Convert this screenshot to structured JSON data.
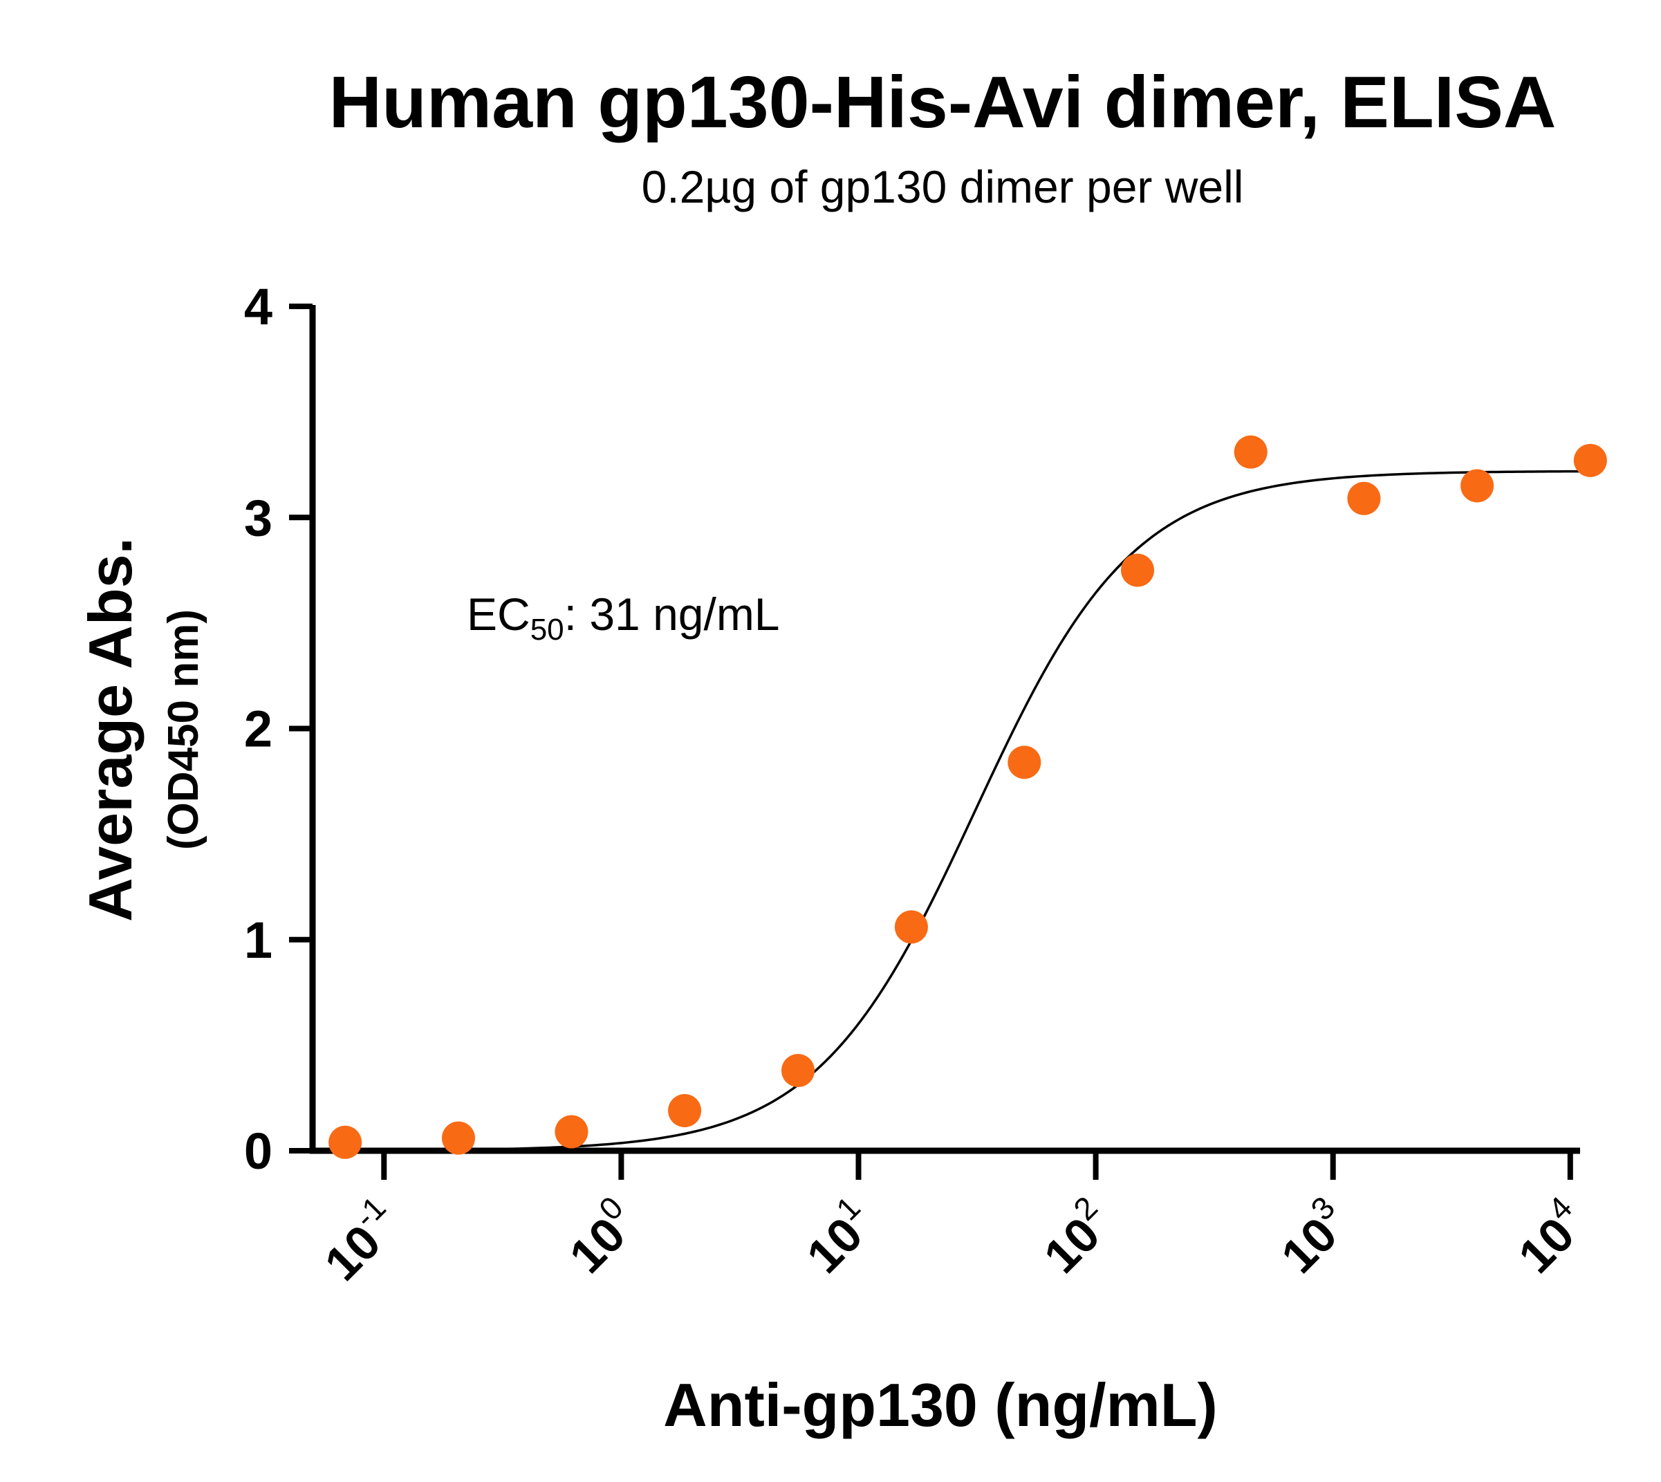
{
  "chart_data": {
    "type": "scatter",
    "title": "Human gp130-His-Avi dimer, ELISA",
    "subtitle": "0.2µg of gp130 dimer per well",
    "xlabel": "Anti-gp130  (ng/mL)",
    "ylabel": "Average Abs.",
    "ylabel_sub": "(OD450 nm)",
    "x_scale": "log",
    "xlim": [
      0.05,
      11000
    ],
    "ylim": [
      0,
      4
    ],
    "x_ticks": [
      {
        "base": "10",
        "exp": "-1",
        "value": 0.1
      },
      {
        "base": "10",
        "exp": "0",
        "value": 1
      },
      {
        "base": "10",
        "exp": "1",
        "value": 10
      },
      {
        "base": "10",
        "exp": "2",
        "value": 100
      },
      {
        "base": "10",
        "exp": "3",
        "value": 1000
      },
      {
        "base": "10",
        "exp": "4",
        "value": 10000
      }
    ],
    "y_ticks": [
      {
        "label": "0",
        "value": 0
      },
      {
        "label": "1",
        "value": 1
      },
      {
        "label": "2",
        "value": 2
      },
      {
        "label": "3",
        "value": 3
      },
      {
        "label": "4",
        "value": 4
      }
    ],
    "grid": false,
    "annotation": {
      "prefix": "EC",
      "sub": "50",
      "suffix": ": 31 ng/mL"
    },
    "series": [
      {
        "marker_color": "#F96A15",
        "points": [
          {
            "x": 0.0686,
            "y": 0.04
          },
          {
            "x": 0.206,
            "y": 0.06
          },
          {
            "x": 0.617,
            "y": 0.09
          },
          {
            "x": 1.85,
            "y": 0.19
          },
          {
            "x": 5.56,
            "y": 0.38
          },
          {
            "x": 16.7,
            "y": 1.06
          },
          {
            "x": 50.0,
            "y": 1.84
          },
          {
            "x": 150,
            "y": 2.75
          },
          {
            "x": 450,
            "y": 3.31
          },
          {
            "x": 1350,
            "y": 3.09
          },
          {
            "x": 4050,
            "y": 3.15
          },
          {
            "x": 12150,
            "y": 3.27
          }
        ]
      }
    ],
    "fit": {
      "model": "4PL",
      "bottom": 0.0,
      "top": 3.22,
      "ec50": 31,
      "hill": 1.3,
      "line_color": "#000000"
    }
  }
}
